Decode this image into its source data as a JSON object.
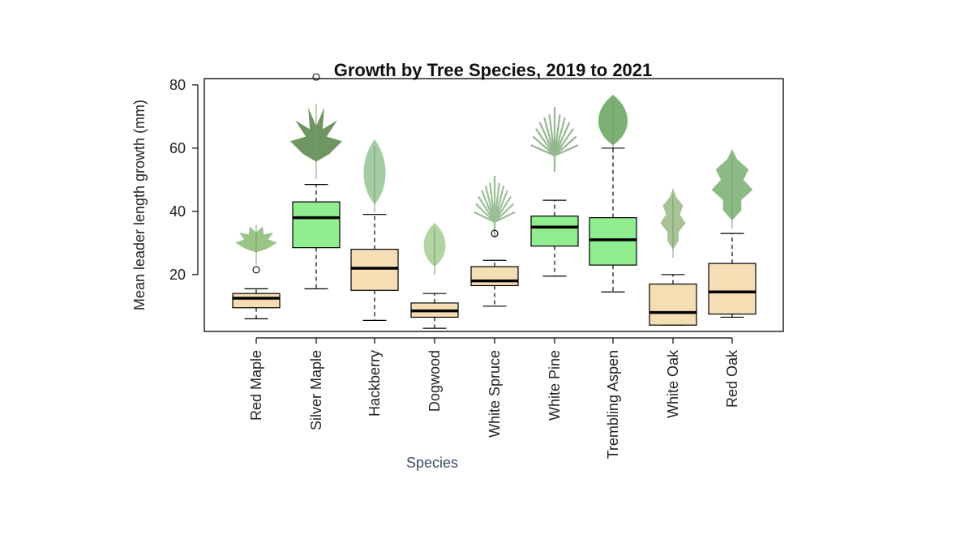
{
  "chart_data": {
    "type": "boxplot",
    "title": "Growth by Tree Species, 2019 to 2021",
    "xlabel": "Species",
    "ylabel": "Mean leader length growth (mm)",
    "ylim": [
      2,
      82
    ],
    "yticks": [
      20,
      40,
      60,
      80
    ],
    "grid": false,
    "categories": [
      "Red Maple",
      "Silver Maple",
      "Hackberry",
      "Dogwood",
      "White Spruce",
      "White Pine",
      "Trembling Aspen",
      "White Oak",
      "Red Oak"
    ],
    "boxes": [
      {
        "min": 6,
        "q1": 9.5,
        "median": 12.5,
        "q3": 14,
        "max": 15.5,
        "outliers": [
          21.5
        ],
        "color": "#f5deb3",
        "icon": "maple-leaf-icon"
      },
      {
        "min": 15.5,
        "q1": 28.5,
        "median": 38,
        "q3": 43,
        "max": 48.5,
        "outliers": [
          83
        ],
        "color": "#90ee90",
        "icon": "silver-maple-leaf-icon"
      },
      {
        "min": 5.5,
        "q1": 15,
        "median": 22,
        "q3": 28,
        "max": 39,
        "outliers": [],
        "color": "#f5deb3",
        "icon": "hackberry-leaf-icon"
      },
      {
        "min": 3,
        "q1": 6.5,
        "median": 8.5,
        "q3": 11,
        "max": 14,
        "outliers": [],
        "color": "#f5deb3",
        "icon": "dogwood-leaf-icon"
      },
      {
        "min": 10,
        "q1": 16.5,
        "median": 18,
        "q3": 22.5,
        "max": 24.5,
        "outliers": [
          33
        ],
        "color": "#f5deb3",
        "icon": "spruce-branch-icon"
      },
      {
        "min": 19.5,
        "q1": 29,
        "median": 35,
        "q3": 38.5,
        "max": 43.5,
        "outliers": [],
        "color": "#90ee90",
        "icon": "pine-needles-icon"
      },
      {
        "min": 14.5,
        "q1": 23,
        "median": 31,
        "q3": 38,
        "max": 60,
        "outliers": [],
        "color": "#90ee90",
        "icon": "aspen-leaf-icon"
      },
      {
        "min": 4,
        "q1": 4,
        "median": 8,
        "q3": 17,
        "max": 20,
        "outliers": [],
        "color": "#f5deb3",
        "icon": "white-oak-leaf-icon"
      },
      {
        "min": 6.5,
        "q1": 7.5,
        "median": 14.5,
        "q3": 23.5,
        "max": 33,
        "outliers": [],
        "color": "#f5deb3",
        "icon": "red-oak-leaf-icon"
      }
    ]
  }
}
